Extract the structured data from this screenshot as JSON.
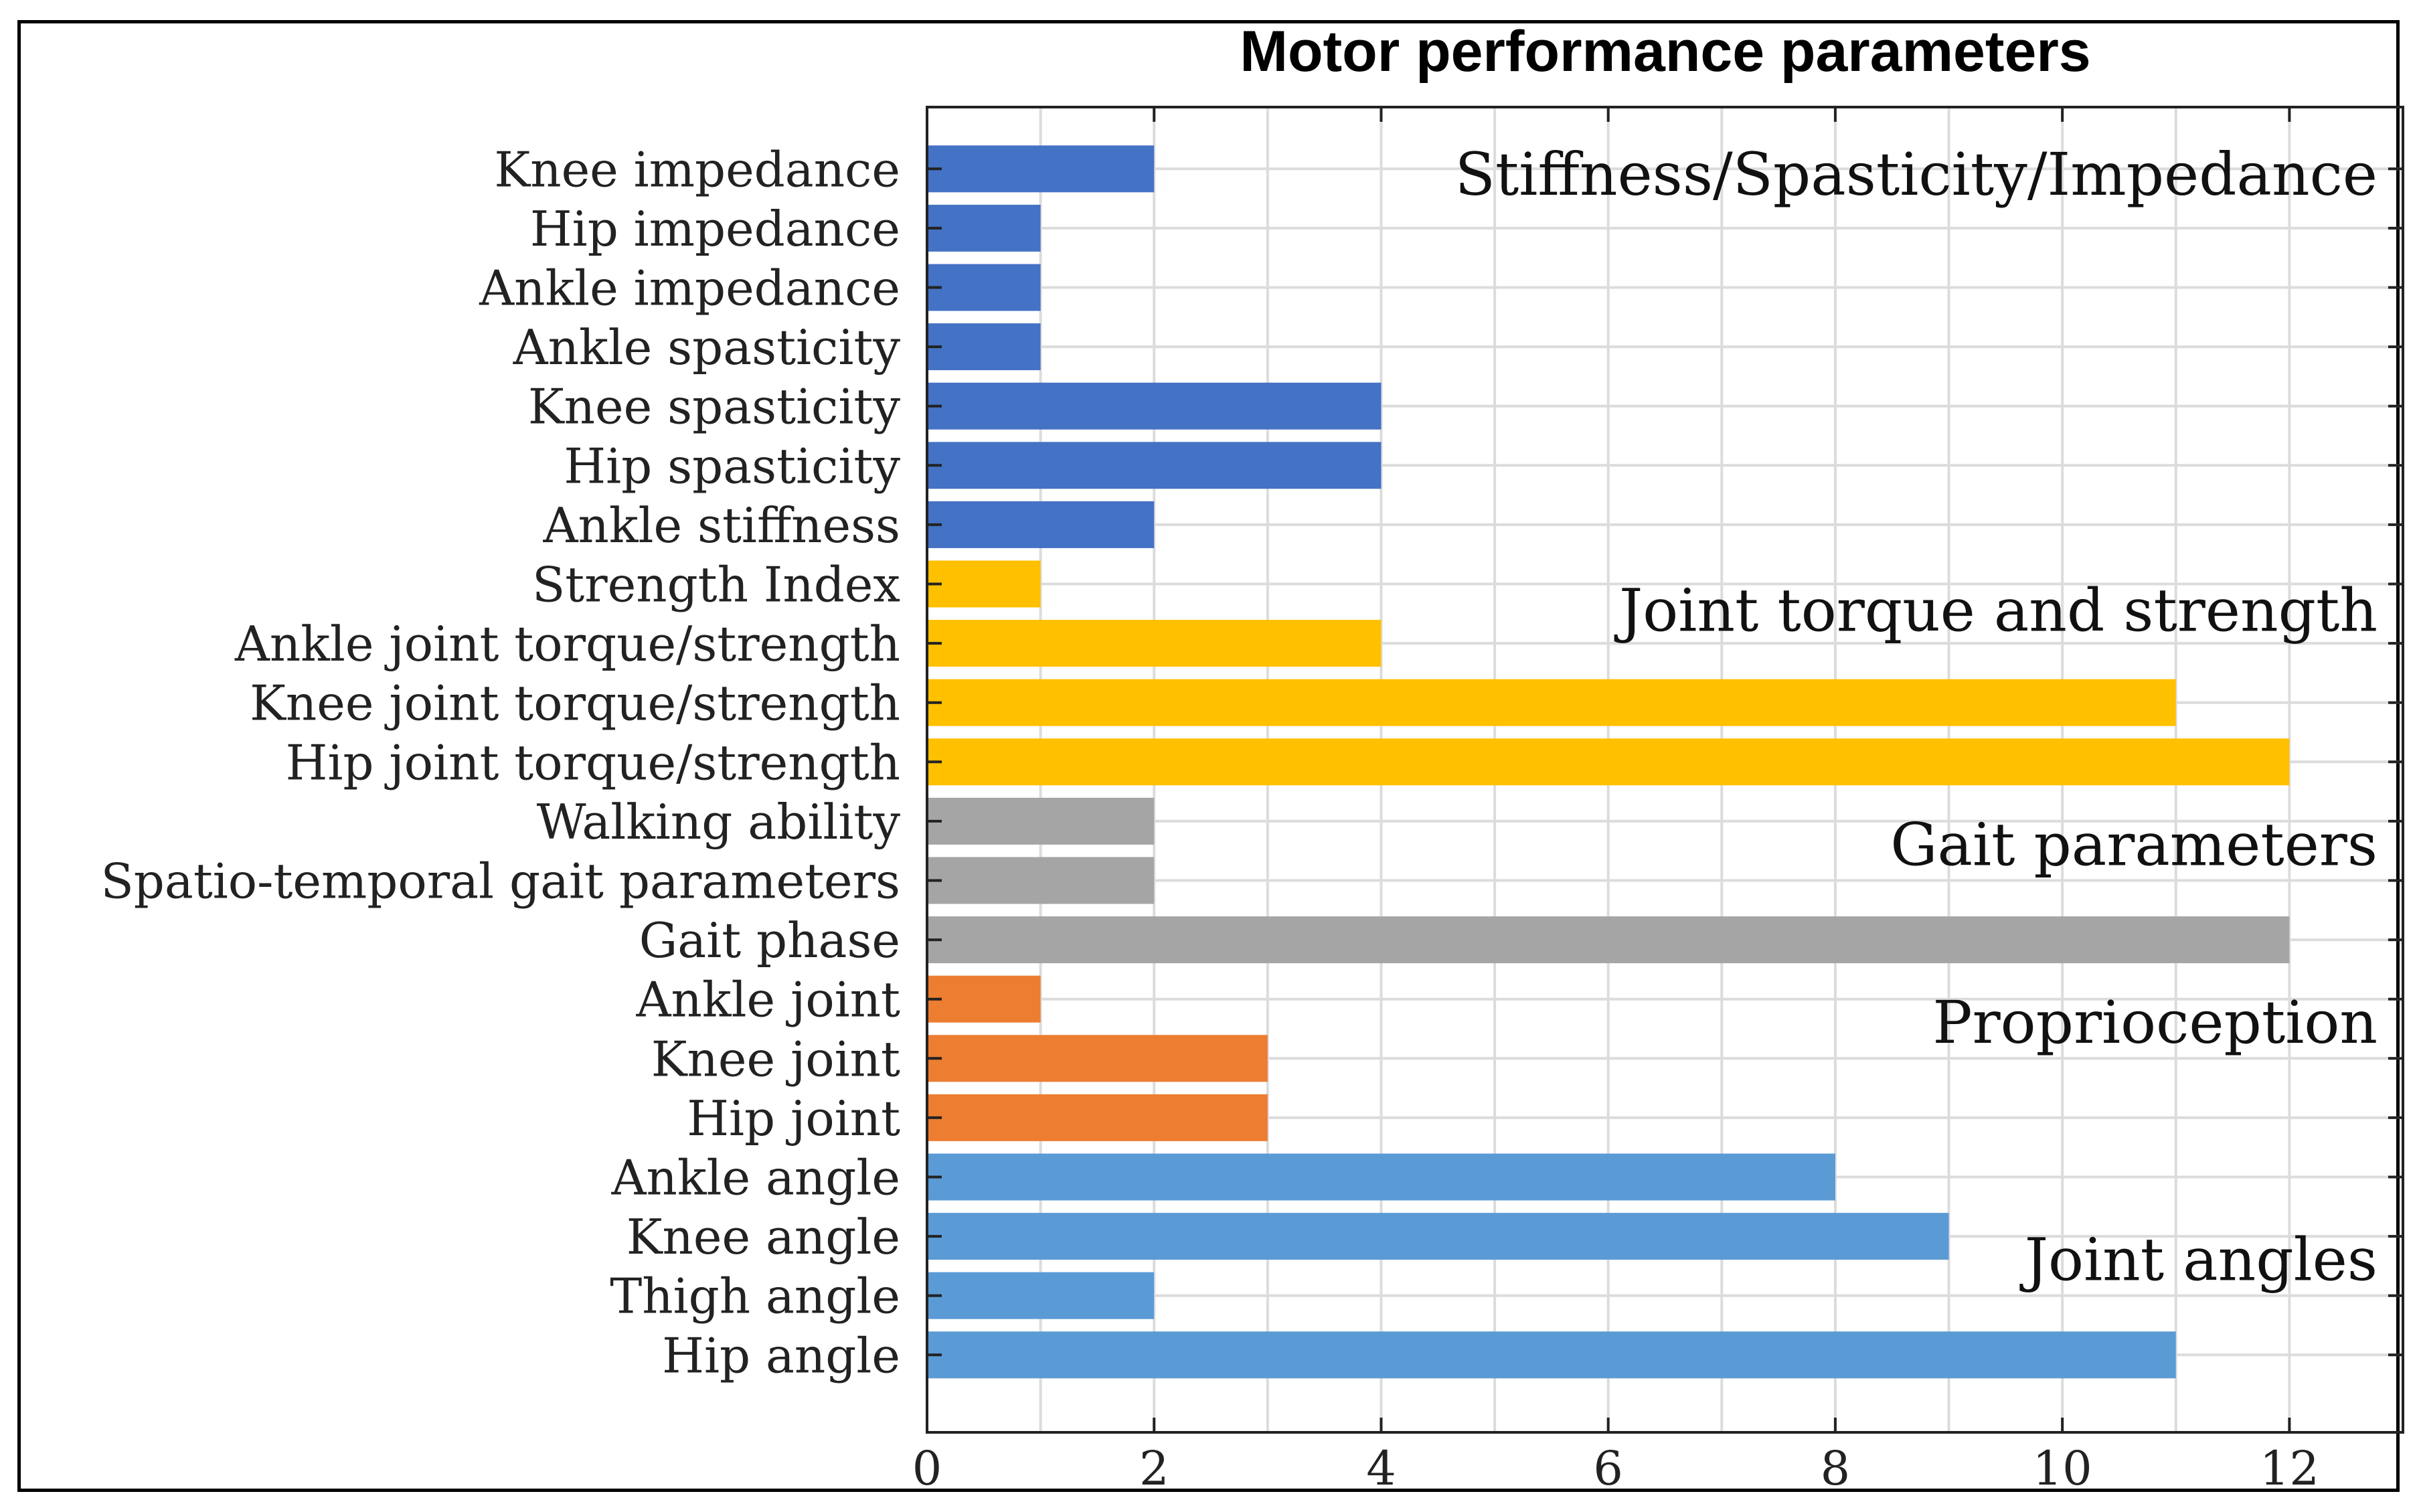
{
  "chart_data": {
    "type": "bar",
    "orientation": "horizontal",
    "title": "Motor performance parameters",
    "xlabel": "",
    "ylabel": "",
    "xlim": [
      0,
      13
    ],
    "x_ticks": [
      0,
      2,
      4,
      6,
      8,
      10,
      12
    ],
    "grid": true,
    "legend": "none",
    "categories": [
      "Knee impedance",
      "Hip impedance",
      "Ankle impedance",
      "Ankle spasticity",
      "Knee spasticity",
      "Hip spasticity",
      "Ankle stiffness",
      "Strength Index",
      "Ankle joint torque/strength",
      "Knee joint torque/strength",
      "Hip joint torque/strength",
      "Walking ability",
      "Spatio-temporal gait parameters",
      "Gait phase",
      "Ankle joint",
      "Knee joint",
      "Hip joint",
      "Ankle angle",
      "Knee angle",
      "Thigh angle",
      "Hip angle"
    ],
    "values": [
      2,
      1,
      1,
      1,
      4,
      4,
      2,
      1,
      4,
      11,
      12,
      2,
      2,
      12,
      1,
      3,
      3,
      8,
      9,
      2,
      11
    ],
    "groups": [
      {
        "name": "Stiffness/Spasticity/Impedance",
        "color": "#4472c4",
        "start": 0,
        "end": 6
      },
      {
        "name": "Joint torque and strength",
        "color": "#ffc000",
        "start": 7,
        "end": 10
      },
      {
        "name": "Gait parameters",
        "color": "#a5a5a5",
        "start": 11,
        "end": 13
      },
      {
        "name": "Proprioception",
        "color": "#ed7d31",
        "start": 14,
        "end": 16
      },
      {
        "name": "Joint angles",
        "color": "#5b9bd5",
        "start": 17,
        "end": 20
      }
    ]
  }
}
